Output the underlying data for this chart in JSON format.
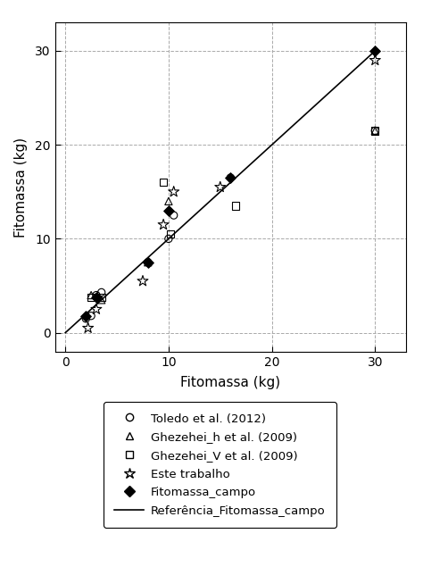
{
  "xlabel": "Fitomassa (kg)",
  "ylabel": "Fitomassa (kg)",
  "xlim": [
    -1,
    33
  ],
  "ylim": [
    -2,
    33
  ],
  "xticks": [
    0,
    10,
    20,
    30
  ],
  "yticks": [
    0,
    10,
    20,
    30
  ],
  "ref_line_x": [
    0,
    30
  ],
  "ref_line_y": [
    0,
    30
  ],
  "toledo_x": [
    2.0,
    2.5,
    3.0,
    3.5,
    8.0,
    10.0,
    10.5,
    16.0,
    30.0
  ],
  "toledo_y": [
    1.5,
    1.8,
    4.0,
    4.3,
    7.5,
    10.0,
    12.5,
    16.5,
    21.5
  ],
  "ghezehei_h_x": [
    2.5,
    3.5,
    8.0,
    10.0,
    30.0
  ],
  "ghezehei_h_y": [
    4.0,
    3.5,
    7.5,
    14.0,
    21.5
  ],
  "ghezehei_v_x": [
    2.5,
    3.5,
    9.5,
    10.2,
    16.5,
    30.0
  ],
  "ghezehei_v_y": [
    3.8,
    3.8,
    16.0,
    10.5,
    13.5,
    21.5
  ],
  "este_trabalho_x": [
    2.2,
    3.0,
    7.5,
    9.5,
    10.5,
    15.0,
    30.0
  ],
  "este_trabalho_y": [
    0.5,
    2.5,
    5.5,
    11.5,
    15.0,
    15.5,
    29.0
  ],
  "fitomassa_campo_x": [
    2.0,
    3.0,
    8.0,
    10.0,
    16.0,
    30.0
  ],
  "fitomassa_campo_y": [
    1.8,
    3.8,
    7.5,
    13.0,
    16.5,
    30.0
  ],
  "bg_color": "#ffffff",
  "grid_color": "#aaaaaa",
  "legend_labels": [
    "Toledo et al. (2012)",
    "Ghezehei_h et al. (2009)",
    "Ghezehei_V et al. (2009)",
    "Este trabalho",
    "Fitomassa_campo",
    "Referência_Fitomassa_campo"
  ]
}
